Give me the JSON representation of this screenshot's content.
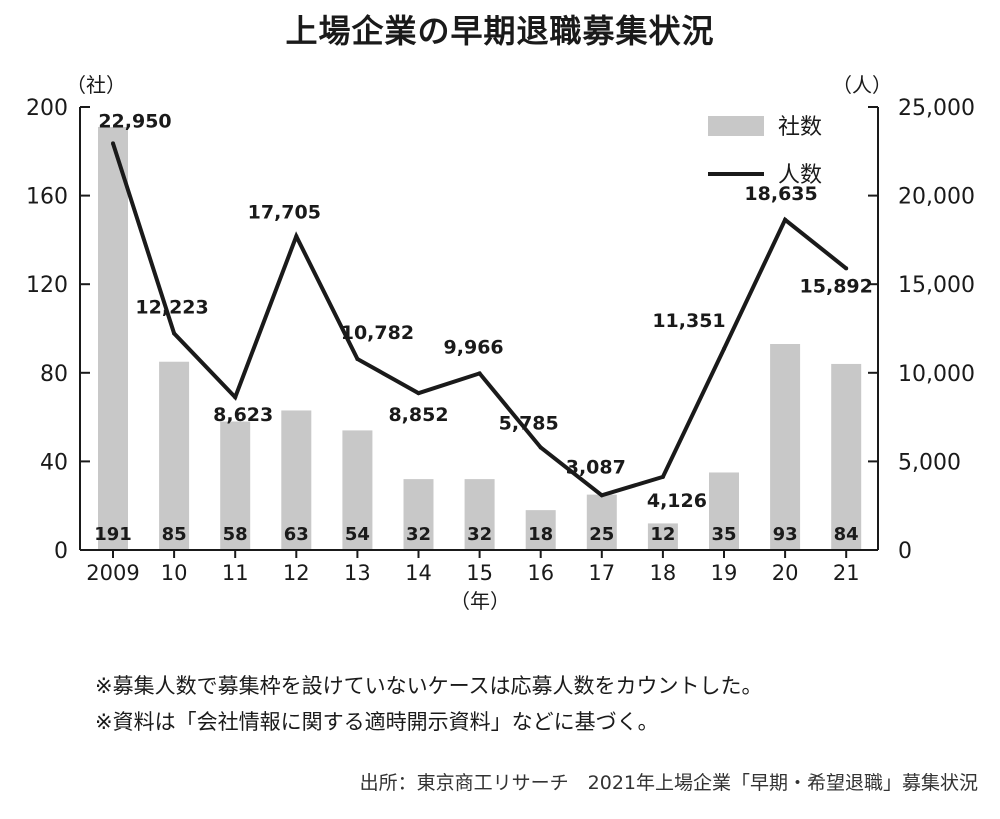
{
  "title": "上場企業の早期退職募集状況",
  "chart_data": {
    "type": "bar+line",
    "categories": [
      "2009",
      "10",
      "11",
      "12",
      "13",
      "14",
      "15",
      "16",
      "17",
      "18",
      "19",
      "20",
      "21"
    ],
    "x_unit": "（年）",
    "y_left": {
      "unit": "（社）",
      "ticks": [
        "0",
        "40",
        "80",
        "120",
        "160",
        "200"
      ],
      "ylim": [
        0,
        200
      ]
    },
    "y_right": {
      "unit": "（人）",
      "ticks": [
        "0",
        "5,000",
        "10,000",
        "15,000",
        "20,000",
        "25,000"
      ],
      "ylim": [
        0,
        25000
      ]
    },
    "series": [
      {
        "name": "社数",
        "kind": "bar",
        "axis": "left",
        "color": "#c8c8c8",
        "values": [
          191,
          85,
          58,
          63,
          54,
          32,
          32,
          18,
          25,
          12,
          35,
          93,
          84
        ],
        "labels": [
          "191",
          "85",
          "58",
          "63",
          "54",
          "32",
          "32",
          "18",
          "25",
          "12",
          "35",
          "93",
          "84"
        ]
      },
      {
        "name": "人数",
        "kind": "line",
        "axis": "right",
        "color": "#1a1a1a",
        "values": [
          22950,
          12223,
          8623,
          17705,
          10782,
          8852,
          9966,
          5785,
          3087,
          4126,
          11351,
          18635,
          15892
        ],
        "labels": [
          "22,950",
          "12,223",
          "8,623",
          "17,705",
          "10,782",
          "8,852",
          "9,966",
          "5,785",
          "3,087",
          "4,126",
          "11,351",
          "18,635",
          "15,892"
        ]
      }
    ],
    "legend": "top-right",
    "grid": false
  },
  "notes": [
    "※募集人数で募集枠を設けていないケースは応募人数をカウントした。",
    "※資料は「会社情報に関する適時開示資料」などに基づく。"
  ],
  "source": "出所：東京商工リサーチ　2021年上場企業「早期・希望退職」募集状況"
}
